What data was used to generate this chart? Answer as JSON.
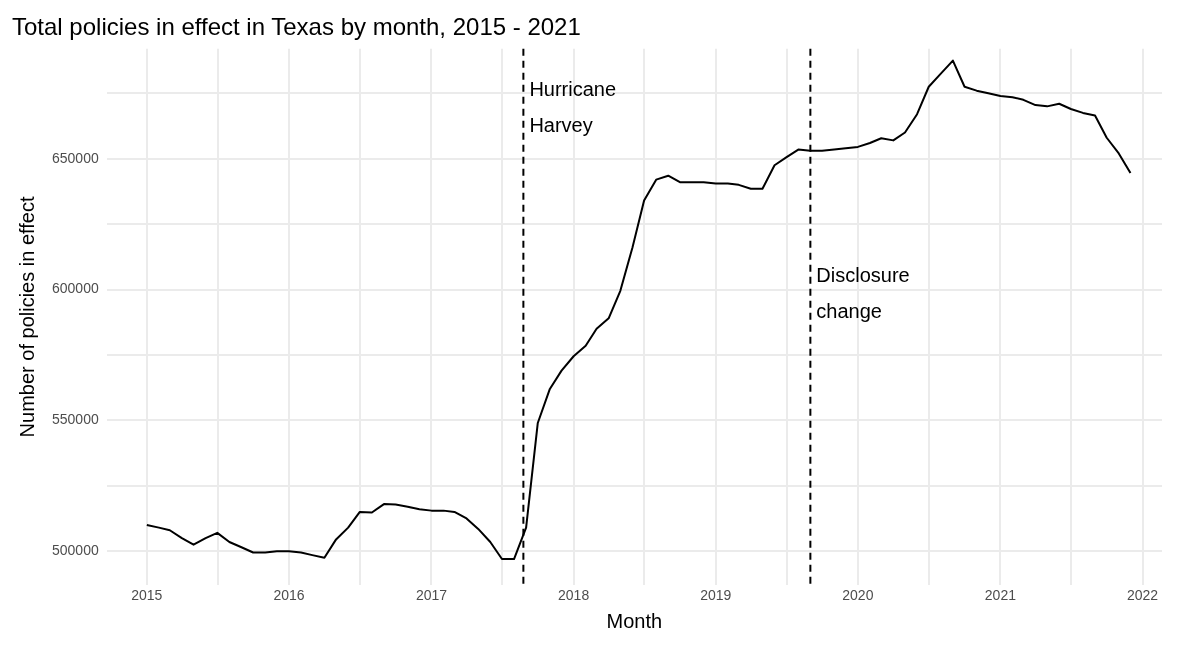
{
  "chart_data": {
    "type": "line",
    "title": "Total policies in effect in Texas by month, 2015 - 2021",
    "xlabel": "Month",
    "ylabel": "Number of policies in effect",
    "x": [
      "2015-01",
      "2015-02",
      "2015-03",
      "2015-04",
      "2015-05",
      "2015-06",
      "2015-07",
      "2015-08",
      "2015-09",
      "2015-10",
      "2015-11",
      "2015-12",
      "2016-01",
      "2016-02",
      "2016-03",
      "2016-04",
      "2016-05",
      "2016-06",
      "2016-07",
      "2016-08",
      "2016-09",
      "2016-10",
      "2016-11",
      "2016-12",
      "2017-01",
      "2017-02",
      "2017-03",
      "2017-04",
      "2017-05",
      "2017-06",
      "2017-07",
      "2017-08",
      "2017-09",
      "2017-10",
      "2017-11",
      "2017-12",
      "2018-01",
      "2018-02",
      "2018-03",
      "2018-04",
      "2018-05",
      "2018-06",
      "2018-07",
      "2018-08",
      "2018-09",
      "2018-10",
      "2018-11",
      "2018-12",
      "2019-01",
      "2019-02",
      "2019-03",
      "2019-04",
      "2019-05",
      "2019-06",
      "2019-07",
      "2019-08",
      "2019-09",
      "2019-10",
      "2019-11",
      "2019-12",
      "2020-01",
      "2020-02",
      "2020-03",
      "2020-04",
      "2020-05",
      "2020-06",
      "2020-07",
      "2020-08",
      "2020-09",
      "2020-10",
      "2020-11",
      "2020-12",
      "2021-01",
      "2021-02",
      "2021-03",
      "2021-04",
      "2021-05",
      "2021-06",
      "2021-07",
      "2021-08",
      "2021-09",
      "2021-10",
      "2021-11",
      "2021-12"
    ],
    "series": [
      {
        "color": "#000000",
        "values": [
          510000,
          509000,
          508000,
          505000,
          502500,
          505000,
          507000,
          503500,
          501500,
          499500,
          499500,
          500000,
          500000,
          499500,
          498500,
          497500,
          504500,
          509000,
          515000,
          514800,
          518000,
          517800,
          517000,
          516000,
          515500,
          515500,
          515000,
          512500,
          508500,
          503500,
          497000,
          497000,
          509000,
          549000,
          562000,
          569000,
          574500,
          578500,
          585000,
          589000,
          599500,
          616000,
          634000,
          642000,
          643500,
          641000,
          641000,
          641000,
          640500,
          640500,
          640000,
          638500,
          638500,
          647500,
          650500,
          653500,
          653000,
          653000,
          653500,
          654000,
          654500,
          656000,
          657800,
          657000,
          660000,
          667000,
          677500,
          682500,
          687500,
          677500,
          676000,
          675000,
          674000,
          673500,
          672500,
          670500,
          670000,
          671000,
          669000,
          667500,
          666500,
          658000,
          652000,
          644500
        ]
      }
    ],
    "xlim": [
      "2014-09-20",
      "2022-02-20"
    ],
    "xticks": [
      {
        "value": "2015",
        "label": "2015"
      },
      {
        "value": "2015-07-02",
        "label": null
      },
      {
        "value": "2016",
        "label": "2016"
      },
      {
        "value": "2016-07-02",
        "label": null
      },
      {
        "value": "2017",
        "label": "2017"
      },
      {
        "value": "2017-07-02",
        "label": null
      },
      {
        "value": "2018",
        "label": "2018"
      },
      {
        "value": "2018-07-02",
        "label": null
      },
      {
        "value": "2019",
        "label": "2019"
      },
      {
        "value": "2019-07-02",
        "label": null
      },
      {
        "value": "2020",
        "label": "2020"
      },
      {
        "value": "2020-07-02",
        "label": null
      },
      {
        "value": "2021",
        "label": "2021"
      },
      {
        "value": "2021-07-02",
        "label": null
      },
      {
        "value": "2022",
        "label": "2022"
      }
    ],
    "ylim": [
      487000,
      692000
    ],
    "yticks": [
      500000,
      {
        "value": 525000,
        "label": null
      },
      550000,
      {
        "value": 575000,
        "label": null
      },
      600000,
      {
        "value": 625000,
        "label": null
      },
      650000,
      {
        "value": 675000,
        "label": null
      }
    ],
    "grid": true,
    "line_style": "solid",
    "marker": "none",
    "ref_lines": [
      {
        "axis": "x",
        "value": "2017-08-25",
        "color": "#000000",
        "line_style": "dashed"
      },
      {
        "axis": "x",
        "value": "2019-09-01",
        "color": "#000000",
        "line_style": "dashed"
      }
    ],
    "annotations": [
      {
        "text": "Hurricane Harvey",
        "x": "2017-08-25",
        "y": 669000
      },
      {
        "text": "Disclosure change",
        "x": "2019-09-01",
        "y": 598000
      }
    ]
  }
}
